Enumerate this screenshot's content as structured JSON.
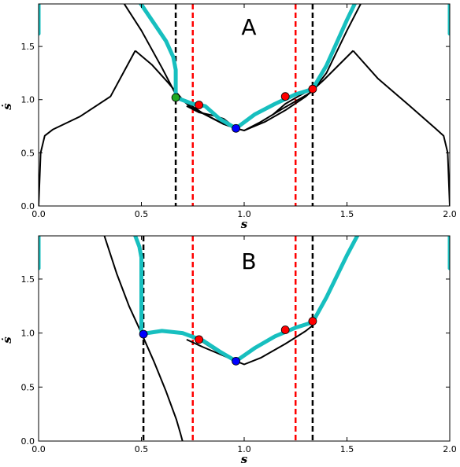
{
  "chart_data": [
    {
      "type": "line",
      "panel_label": "A",
      "xlabel": "s",
      "ylabel": "ṡ",
      "xlim": [
        0.0,
        2.0
      ],
      "ylim": [
        0.0,
        1.9
      ],
      "xticks": [
        "0.0",
        "0.5",
        "1.0",
        "1.5",
        "2.0"
      ],
      "xtick_values": [
        0.0,
        0.5,
        1.0,
        1.5,
        2.0
      ],
      "yticks": [
        "0.0",
        "0.5",
        "1.0",
        "1.5"
      ],
      "ytick_values": [
        0.0,
        0.5,
        1.0,
        1.5
      ],
      "vlines": [
        {
          "x": 0.667,
          "color": "#000000"
        },
        {
          "x": 0.75,
          "color": "#ff0000"
        },
        {
          "x": 1.25,
          "color": "#ff0000"
        },
        {
          "x": 1.333,
          "color": "#000000"
        }
      ],
      "black_curves": [
        [
          [
            0.0,
            0.0
          ],
          [
            0.01,
            0.5
          ],
          [
            0.03,
            0.66
          ],
          [
            0.07,
            0.72
          ],
          [
            0.2,
            0.84
          ],
          [
            0.35,
            1.03
          ],
          [
            0.47,
            1.46
          ]
        ],
        [
          [
            0.47,
            1.46
          ],
          [
            0.55,
            1.33
          ],
          [
            0.63,
            1.16
          ],
          [
            0.7,
            1.0
          ],
          [
            0.8,
            0.87
          ],
          [
            0.9,
            0.77
          ],
          [
            0.96,
            0.73
          ]
        ],
        [
          [
            0.4,
            1.95
          ],
          [
            0.5,
            1.65
          ],
          [
            0.6,
            1.3
          ],
          [
            0.667,
            1.05
          ],
          [
            0.74,
            0.93
          ],
          [
            0.8,
            0.87
          ],
          [
            0.9,
            0.77
          ],
          [
            0.96,
            0.73
          ]
        ],
        [
          [
            0.96,
            0.73
          ],
          [
            1.0,
            0.71
          ],
          [
            1.08,
            0.79
          ],
          [
            1.2,
            0.93
          ],
          [
            1.3,
            1.04
          ],
          [
            1.333,
            1.08
          ],
          [
            1.4,
            1.25
          ],
          [
            1.5,
            1.65
          ],
          [
            1.58,
            1.95
          ]
        ],
        [
          [
            1.0,
            0.71
          ],
          [
            1.1,
            0.79
          ],
          [
            1.2,
            0.9
          ],
          [
            1.3,
            1.03
          ],
          [
            1.39,
            1.19
          ],
          [
            1.53,
            1.46
          ]
        ],
        [
          [
            0.72,
            0.94
          ],
          [
            0.78,
            0.88
          ],
          [
            0.85,
            0.85
          ],
          [
            0.9,
            0.82
          ],
          [
            0.96,
            0.73
          ]
        ],
        [
          [
            1.14,
            0.86
          ],
          [
            1.2,
            0.96
          ],
          [
            1.28,
            1.05
          ],
          [
            1.333,
            1.1
          ]
        ],
        [
          [
            1.53,
            1.46
          ],
          [
            1.65,
            1.2
          ],
          [
            1.8,
            0.95
          ],
          [
            1.93,
            0.73
          ],
          [
            1.97,
            0.66
          ],
          [
            1.99,
            0.5
          ],
          [
            2.0,
            0.0
          ]
        ]
      ],
      "cyan_curves": [
        [
          [
            0.0,
            1.62
          ],
          [
            0.0,
            1.95
          ]
        ],
        [
          [
            0.48,
            1.95
          ],
          [
            0.55,
            1.75
          ],
          [
            0.62,
            1.55
          ],
          [
            0.655,
            1.4
          ],
          [
            0.667,
            1.28
          ],
          [
            0.667,
            1.02
          ],
          [
            0.75,
            0.96
          ],
          [
            0.81,
            0.94
          ],
          [
            0.88,
            0.82
          ],
          [
            0.96,
            0.73
          ],
          [
            1.05,
            0.86
          ],
          [
            1.15,
            0.96
          ],
          [
            1.25,
            1.05
          ],
          [
            1.333,
            1.1
          ],
          [
            1.4,
            1.32
          ],
          [
            1.5,
            1.75
          ],
          [
            1.55,
            1.95
          ]
        ],
        [
          [
            2.0,
            1.62
          ],
          [
            2.0,
            1.95
          ]
        ]
      ],
      "markers": [
        {
          "x": 0.667,
          "y": 1.02,
          "color": "#22aa22"
        },
        {
          "x": 0.78,
          "y": 0.95,
          "color": "#ff0000"
        },
        {
          "x": 0.96,
          "y": 0.73,
          "color": "#0000ff"
        },
        {
          "x": 1.2,
          "y": 1.03,
          "color": "#ff0000"
        },
        {
          "x": 1.333,
          "y": 1.1,
          "color": "#ff0000"
        }
      ]
    },
    {
      "type": "line",
      "panel_label": "B",
      "xlabel": "s",
      "ylabel": "ṡ",
      "xlim": [
        0.0,
        2.0
      ],
      "ylim": [
        0.0,
        1.9
      ],
      "xticks": [
        "0.0",
        "0.5",
        "1.0",
        "1.5",
        "2.0"
      ],
      "xtick_values": [
        0.0,
        0.5,
        1.0,
        1.5,
        2.0
      ],
      "yticks": [
        "0.0",
        "0.5",
        "1.0",
        "1.5"
      ],
      "ytick_values": [
        0.0,
        0.5,
        1.0,
        1.5
      ],
      "vlines": [
        {
          "x": 0.51,
          "color": "#000000"
        },
        {
          "x": 0.75,
          "color": "#ff0000"
        },
        {
          "x": 1.25,
          "color": "#ff0000"
        },
        {
          "x": 1.333,
          "color": "#000000"
        }
      ],
      "black_curves": [
        [
          [
            0.32,
            1.9
          ],
          [
            0.38,
            1.55
          ],
          [
            0.44,
            1.25
          ],
          [
            0.5,
            1.0
          ],
          [
            0.56,
            0.74
          ],
          [
            0.62,
            0.46
          ],
          [
            0.67,
            0.2
          ],
          [
            0.69,
            0.07
          ],
          [
            0.7,
            0.0
          ]
        ],
        [
          [
            0.72,
            0.94
          ],
          [
            0.8,
            0.87
          ],
          [
            0.9,
            0.79
          ],
          [
            0.96,
            0.74
          ],
          [
            1.0,
            0.71
          ],
          [
            1.08,
            0.77
          ],
          [
            1.2,
            0.9
          ],
          [
            1.3,
            1.02
          ],
          [
            1.333,
            1.07
          ]
        ],
        [
          [
            0.78,
            0.94
          ],
          [
            0.86,
            0.84
          ],
          [
            0.96,
            0.74
          ]
        ],
        [
          [
            1.2,
            1.02
          ],
          [
            1.28,
            1.06
          ],
          [
            1.333,
            1.1
          ]
        ]
      ],
      "cyan_curves": [
        [
          [
            0.0,
            1.6
          ],
          [
            0.0,
            1.9
          ]
        ],
        [
          [
            0.47,
            1.9
          ],
          [
            0.49,
            1.8
          ],
          [
            0.5,
            1.7
          ],
          [
            0.5,
            1.0
          ],
          [
            0.53,
            1.0
          ],
          [
            0.6,
            1.02
          ],
          [
            0.7,
            1.0
          ],
          [
            0.8,
            0.93
          ],
          [
            0.88,
            0.83
          ],
          [
            0.96,
            0.74
          ],
          [
            1.05,
            0.86
          ],
          [
            1.15,
            0.97
          ],
          [
            1.25,
            1.05
          ],
          [
            1.333,
            1.1
          ],
          [
            1.4,
            1.33
          ],
          [
            1.5,
            1.72
          ],
          [
            1.55,
            1.9
          ]
        ],
        [
          [
            2.0,
            1.6
          ],
          [
            2.0,
            1.9
          ]
        ]
      ],
      "markers": [
        {
          "x": 0.51,
          "y": 0.99,
          "color": "#0000ff"
        },
        {
          "x": 0.78,
          "y": 0.94,
          "color": "#ff0000"
        },
        {
          "x": 0.96,
          "y": 0.74,
          "color": "#0000ff"
        },
        {
          "x": 1.2,
          "y": 1.03,
          "color": "#ff0000"
        },
        {
          "x": 1.333,
          "y": 1.11,
          "color": "#ff0000"
        }
      ]
    }
  ]
}
